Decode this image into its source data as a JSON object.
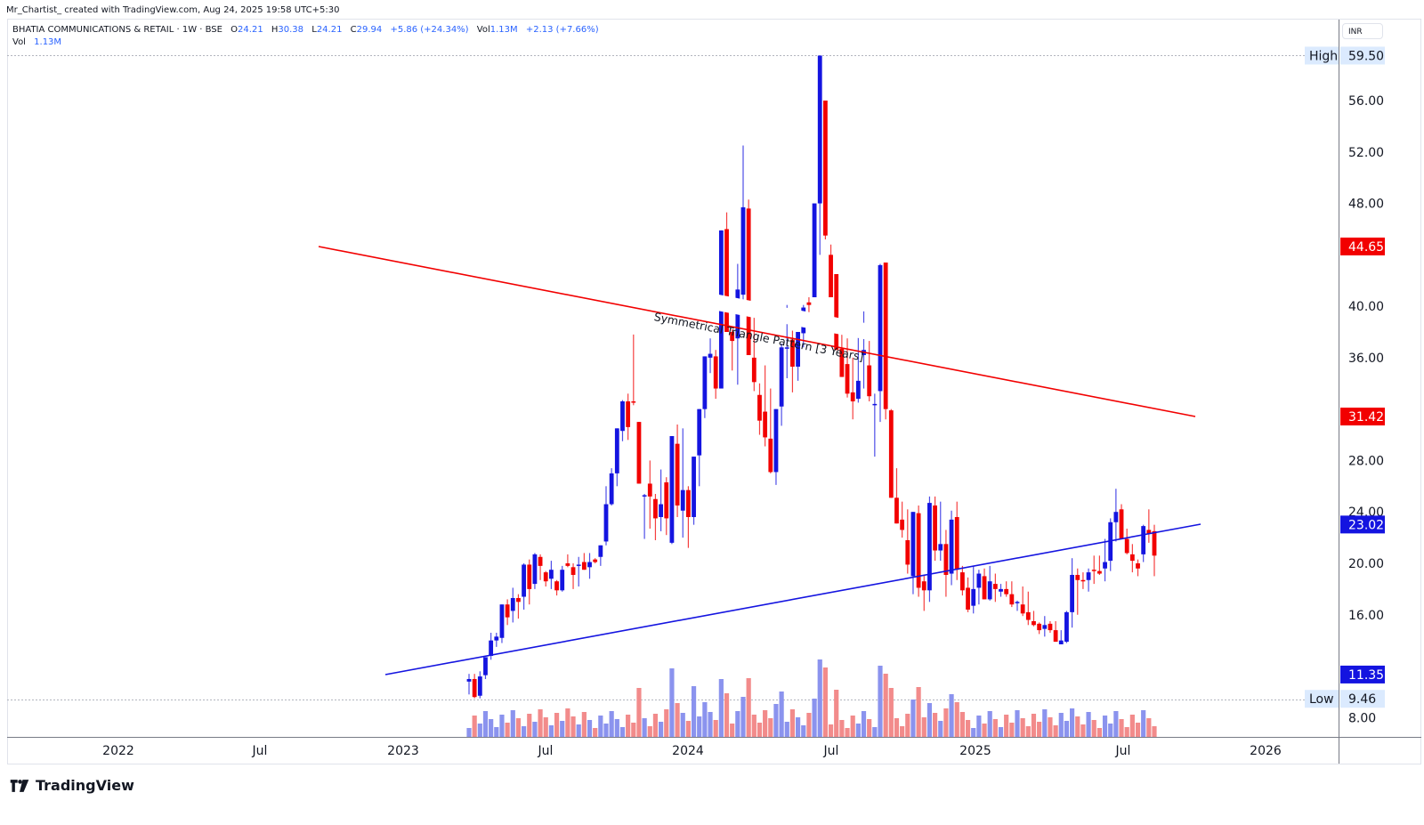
{
  "header": {
    "credit": "Mr_Chartist_ created with TradingView.com, Aug 24, 2025 19:58 UTC+5:30",
    "symbol": "BHATIA COMMUNICATIONS & RETAIL · 1W · BSE",
    "open_label": "O",
    "open": "24.21",
    "high_label": "H",
    "high": "30.38",
    "low_label": "L",
    "low": "24.21",
    "close_label": "C",
    "close": "29.94",
    "change": "+5.86 (+24.34%)",
    "vol_label": "Vol",
    "vol": "1.13M",
    "vol_change": "+2.13 (+7.66%)",
    "vol_row_label": "Vol",
    "vol_row_value": "1.13M"
  },
  "price_axis": {
    "currency": "INR",
    "ticks": [
      "56.00",
      "52.00",
      "48.00",
      "40.00",
      "36.00",
      "28.00",
      "24.00",
      "20.00",
      "16.00",
      "8.00"
    ],
    "markers": [
      {
        "label": "59.50",
        "tag": "High",
        "color": "#dbeafe",
        "text_color": "#131722"
      },
      {
        "label": "44.65",
        "tag": "",
        "color": "#f20000",
        "text_color": "#ffffff"
      },
      {
        "label": "31.42",
        "tag": "",
        "color": "#f20000",
        "text_color": "#ffffff"
      },
      {
        "label": "23.02",
        "tag": "",
        "color": "#1414e0",
        "text_color": "#ffffff"
      },
      {
        "label": "11.35",
        "tag": "",
        "color": "#1414e0",
        "text_color": "#ffffff"
      },
      {
        "label": "9.46",
        "tag": "Low",
        "color": "#dbeafe",
        "text_color": "#131722"
      }
    ]
  },
  "time_axis": {
    "labels": [
      "2022",
      "Jul",
      "2023",
      "Jul",
      "2024",
      "Jul",
      "2025",
      "Jul",
      "2026"
    ]
  },
  "annotation": {
    "text": "Symmetrical Triangle Pattern [3 Years]"
  },
  "colors": {
    "up": "#1414e0",
    "down": "#f20000",
    "vol_up": "#8b93ee",
    "vol_down": "#f28b8b",
    "resistance": "#f20000",
    "support": "#1414e0"
  },
  "brand": {
    "name": "TradingView"
  },
  "chart_data": {
    "type": "candlestick",
    "title": "BHATIA COMMUNICATIONS & RETAIL · 1W · BSE",
    "xlabel": "",
    "ylabel": "INR",
    "ylim": [
      6,
      61
    ],
    "x_ticks": [
      "2022",
      "Jul",
      "2023",
      "Jul",
      "2024",
      "Jul",
      "2025",
      "Jul",
      "2026"
    ],
    "y_ticks": [
      8,
      16,
      20,
      24,
      28,
      36,
      40,
      48,
      52,
      56
    ],
    "all_time_high": 59.5,
    "all_time_low": 9.46,
    "last_bar": {
      "open": 24.21,
      "high": 30.38,
      "low": 24.21,
      "close": 29.94,
      "change": 5.86,
      "change_pct": 24.34,
      "volume": "1.13M"
    },
    "trendlines": [
      {
        "name": "Resistance (descending)",
        "color": "#f20000",
        "from": {
          "date": "Nov 2022",
          "price": 43.8
        },
        "to": {
          "date": "Oct 2025",
          "price": 31.42
        }
      },
      {
        "name": "Support (ascending)",
        "color": "#1414e0",
        "from": {
          "date": "Dec 2022",
          "price": 11.35
        },
        "to": {
          "date": "Oct 2025",
          "price": 23.02
        }
      }
    ],
    "annotations": [
      "Symmetrical Triangle Pattern [3 Years]"
    ],
    "price_labels": [
      59.5,
      44.65,
      31.42,
      23.02,
      11.35,
      9.46
    ],
    "candles_ohlc_approx": [
      [
        10.8,
        11.4,
        9.8,
        11.0
      ],
      [
        11.0,
        11.4,
        9.5,
        9.6
      ],
      [
        9.7,
        11.6,
        9.5,
        11.2
      ],
      [
        11.3,
        12.6,
        11.0,
        12.7
      ],
      [
        12.8,
        14.6,
        12.5,
        14.0
      ],
      [
        14.0,
        14.6,
        13.5,
        14.3
      ],
      [
        14.2,
        16.8,
        13.8,
        16.8
      ],
      [
        16.8,
        17.2,
        15.2,
        15.8
      ],
      [
        16.3,
        18.1,
        15.4,
        17.3
      ],
      [
        17.3,
        17.6,
        15.7,
        17.0
      ],
      [
        17.4,
        20.0,
        16.4,
        19.9
      ],
      [
        19.9,
        20.3,
        16.8,
        18.0
      ],
      [
        18.4,
        20.8,
        18.0,
        20.7
      ],
      [
        20.5,
        20.7,
        18.7,
        19.8
      ],
      [
        19.3,
        19.4,
        18.2,
        18.6
      ],
      [
        18.8,
        20.2,
        18.0,
        19.5
      ],
      [
        18.6,
        18.7,
        17.5,
        17.9
      ],
      [
        17.9,
        19.8,
        17.8,
        19.5
      ],
      [
        20.0,
        20.7,
        19.7,
        19.8
      ],
      [
        19.7,
        20.0,
        18.0,
        19.1
      ],
      [
        19.8,
        20.5,
        18.2,
        19.9
      ],
      [
        20.1,
        20.8,
        19.5,
        19.5
      ],
      [
        19.7,
        20.8,
        18.8,
        20.1
      ],
      [
        20.3,
        20.4,
        20.0,
        20.1
      ],
      [
        20.5,
        21.4,
        19.8,
        21.4
      ],
      [
        21.7,
        26.0,
        21.4,
        24.6
      ],
      [
        24.6,
        27.4,
        24.5,
        27.0
      ],
      [
        27.0,
        27.6,
        26.0,
        30.5
      ],
      [
        30.3,
        32.7,
        29.5,
        32.6
      ],
      [
        32.6,
        33.2,
        29.6,
        30.6
      ],
      [
        32.6,
        37.8,
        32.3,
        32.5
      ],
      [
        31.0,
        31.0,
        26.2,
        26.2
      ],
      [
        25.3,
        25.4,
        21.9,
        25.3
      ],
      [
        26.2,
        28.0,
        22.7,
        25.2
      ],
      [
        25.0,
        25.4,
        21.8,
        23.5
      ],
      [
        23.6,
        27.3,
        22.5,
        24.6
      ],
      [
        26.3,
        26.7,
        22.2,
        23.5
      ],
      [
        21.6,
        29.8,
        21.5,
        29.9
      ],
      [
        29.3,
        30.8,
        23.6,
        24.5
      ],
      [
        24.1,
        30.5,
        22.0,
        25.7
      ],
      [
        25.7,
        26.0,
        21.2,
        23.6
      ],
      [
        23.6,
        27.3,
        23.0,
        28.3
      ],
      [
        28.4,
        29.7,
        26.0,
        32.0
      ],
      [
        32.0,
        36.0,
        31.3,
        36.1
      ],
      [
        36.0,
        37.5,
        34.8,
        36.3
      ],
      [
        36.1,
        36.6,
        32.8,
        33.6
      ],
      [
        33.6,
        45.9,
        34.4,
        45.9
      ],
      [
        46.0,
        47.3,
        38.8,
        38.0
      ],
      [
        38.0,
        38.2,
        35.0,
        37.3
      ],
      [
        37.5,
        43.3,
        33.9,
        41.3
      ],
      [
        40.9,
        52.5,
        40.2,
        47.7
      ],
      [
        47.6,
        48.3,
        36.5,
        36.2
      ],
      [
        36.0,
        40.0,
        33.4,
        34.1
      ],
      [
        33.1,
        34.0,
        30.0,
        31.1
      ],
      [
        31.8,
        35.4,
        29.1,
        29.8
      ],
      [
        29.7,
        33.6,
        27.0,
        27.1
      ],
      [
        27.1,
        31.5,
        26.1,
        32.0
      ],
      [
        32.2,
        37.1,
        30.7,
        36.8
      ],
      [
        36.8,
        40.1,
        34.4,
        36.8
      ],
      [
        37.4,
        38.1,
        33.3,
        35.3
      ],
      [
        35.3,
        37.2,
        34.2,
        38.0
      ],
      [
        37.9,
        40.1,
        36.8,
        39.9
      ],
      [
        40.3,
        40.7,
        39.0,
        40.1
      ],
      [
        40.7,
        42.0,
        42.1,
        48.0
      ],
      [
        48.0,
        49.8,
        44.0,
        59.5
      ],
      [
        56.0,
        56.0,
        45.2,
        45.5
      ],
      [
        44.0,
        44.8,
        40.7,
        40.7
      ],
      [
        42.5,
        42.5,
        36.8,
        36.6
      ],
      [
        36.7,
        37.8,
        34.5,
        34.5
      ],
      [
        35.5,
        37.5,
        32.9,
        33.2
      ],
      [
        33.3,
        36.0,
        31.2,
        32.6
      ],
      [
        32.8,
        37.8,
        32.5,
        34.2
      ],
      [
        36.2,
        39.6,
        33.6,
        36.6
      ],
      [
        35.4,
        37.3,
        32.6,
        33.0
      ],
      [
        32.4,
        33.2,
        28.3,
        32.4
      ],
      [
        33.4,
        43.3,
        31.0,
        43.2
      ],
      [
        43.4,
        43.4,
        31.2,
        32.0
      ],
      [
        31.9,
        32.0,
        25.1,
        25.1
      ],
      [
        25.1,
        27.4,
        23.2,
        23.1
      ],
      [
        23.4,
        24.8,
        22.0,
        22.6
      ],
      [
        21.8,
        24.2,
        19.2,
        19.9
      ],
      [
        19.0,
        22.7,
        17.6,
        24.0
      ],
      [
        23.9,
        24.5,
        17.4,
        18.1
      ],
      [
        18.6,
        19.1,
        16.3,
        17.9
      ],
      [
        17.9,
        25.2,
        17.0,
        24.7
      ],
      [
        24.5,
        25.2,
        20.2,
        21.0
      ],
      [
        21.0,
        24.8,
        20.2,
        21.5
      ],
      [
        21.5,
        22.6,
        17.4,
        19.1
      ],
      [
        19.2,
        24.1,
        18.3,
        23.4
      ],
      [
        23.6,
        24.8,
        18.7,
        19.5
      ],
      [
        19.3,
        19.8,
        17.5,
        17.9
      ],
      [
        18.1,
        18.9,
        16.2,
        16.4
      ],
      [
        16.7,
        19.8,
        16.1,
        18.0
      ],
      [
        18.1,
        19.5,
        16.8,
        19.2
      ],
      [
        19.0,
        19.6,
        17.2,
        17.2
      ],
      [
        17.2,
        19.8,
        17.1,
        18.6
      ],
      [
        18.4,
        19.2,
        17.0,
        18.0
      ],
      [
        17.8,
        18.4,
        17.4,
        18.0
      ],
      [
        18.0,
        18.6,
        17.4,
        17.6
      ],
      [
        17.6,
        18.6,
        16.6,
        16.8
      ],
      [
        17.0,
        17.1,
        16.3,
        17.0
      ],
      [
        16.8,
        18.2,
        15.9,
        16.1
      ],
      [
        16.2,
        17.8,
        15.2,
        15.6
      ],
      [
        15.5,
        16.3,
        15.1,
        15.2
      ],
      [
        15.3,
        15.4,
        14.5,
        14.8
      ],
      [
        14.9,
        15.9,
        14.3,
        15.2
      ],
      [
        15.3,
        15.5,
        14.6,
        14.8
      ],
      [
        14.8,
        15.5,
        13.9,
        13.9
      ],
      [
        13.7,
        14.8,
        13.7,
        14.0
      ],
      [
        13.9,
        16.3,
        13.8,
        16.2
      ],
      [
        16.2,
        20.4,
        15.0,
        19.1
      ],
      [
        19.1,
        19.6,
        16.0,
        18.7
      ],
      [
        18.7,
        19.3,
        18.0,
        18.6
      ],
      [
        18.7,
        19.6,
        17.8,
        19.3
      ],
      [
        19.5,
        20.6,
        18.4,
        19.4
      ],
      [
        19.4,
        20.6,
        19.1,
        19.2
      ],
      [
        19.6,
        21.9,
        18.6,
        20.1
      ],
      [
        20.2,
        23.5,
        19.4,
        23.2
      ],
      [
        23.2,
        25.8,
        21.7,
        24.0
      ],
      [
        24.2,
        24.6,
        21.9,
        21.9
      ],
      [
        21.9,
        22.7,
        20.7,
        20.8
      ],
      [
        20.7,
        21.5,
        19.3,
        20.2
      ],
      [
        20.0,
        20.3,
        19.0,
        19.6
      ],
      [
        20.7,
        23.0,
        20.1,
        22.9
      ],
      [
        22.6,
        24.2,
        21.6,
        22.3
      ],
      [
        22.5,
        23.0,
        19.0,
        20.6
      ]
    ]
  }
}
